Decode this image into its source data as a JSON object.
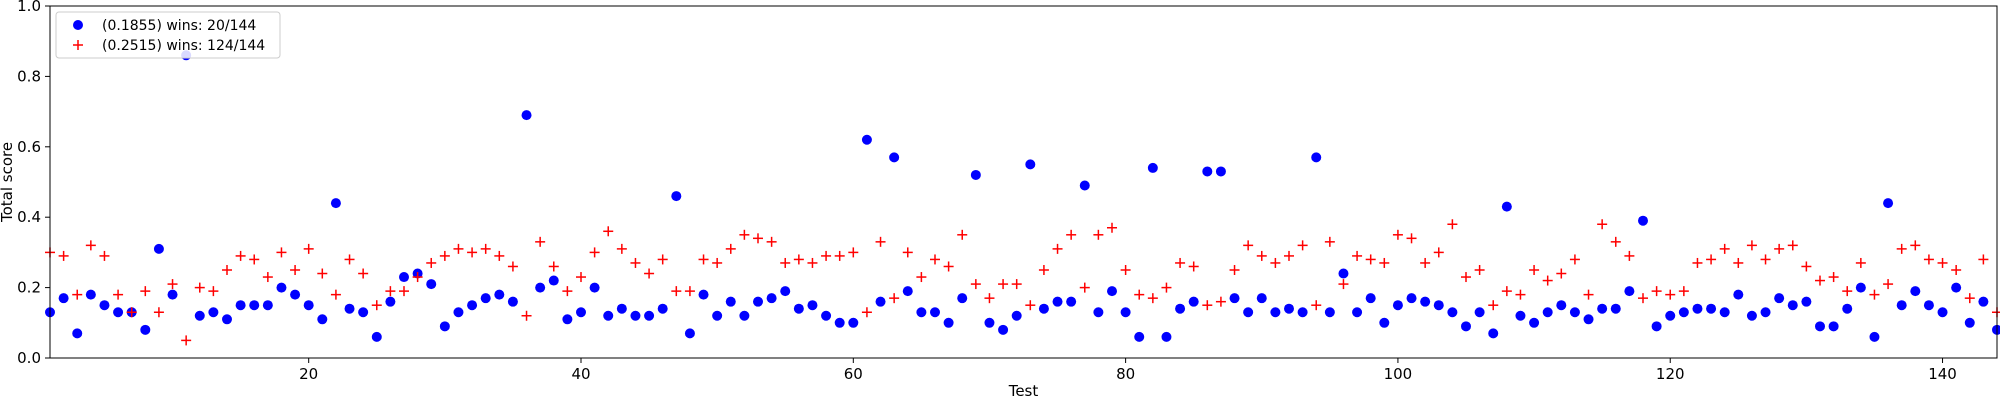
{
  "chart_data": {
    "type": "scatter",
    "title": "",
    "xlabel": "Test",
    "ylabel": "Total score",
    "xlim": [
      1,
      144
    ],
    "ylim": [
      0.0,
      1.0
    ],
    "xticks": [
      20,
      40,
      60,
      80,
      100,
      120,
      140
    ],
    "yticks": [
      0.0,
      0.2,
      0.4,
      0.6,
      0.8,
      1.0
    ],
    "grid": false,
    "legend_position": "top-left",
    "series": [
      {
        "name": "(0.1855) wins: 20/144",
        "marker": "circle",
        "color": "#0000ff",
        "x": [
          1,
          2,
          3,
          4,
          5,
          6,
          7,
          8,
          9,
          10,
          11,
          12,
          13,
          14,
          15,
          16,
          17,
          18,
          19,
          20,
          21,
          22,
          23,
          24,
          25,
          26,
          27,
          28,
          29,
          30,
          31,
          32,
          33,
          34,
          35,
          36,
          37,
          38,
          39,
          40,
          41,
          42,
          43,
          44,
          45,
          46,
          47,
          48,
          49,
          50,
          51,
          52,
          53,
          54,
          55,
          56,
          57,
          58,
          59,
          60,
          61,
          62,
          63,
          64,
          65,
          66,
          67,
          68,
          69,
          70,
          71,
          72,
          73,
          74,
          75,
          76,
          77,
          78,
          79,
          80,
          81,
          82,
          83,
          84,
          85,
          86,
          87,
          88,
          89,
          90,
          91,
          92,
          93,
          94,
          95,
          96,
          97,
          98,
          99,
          100,
          101,
          102,
          103,
          104,
          105,
          106,
          107,
          108,
          109,
          110,
          111,
          112,
          113,
          114,
          115,
          116,
          117,
          118,
          119,
          120,
          121,
          122,
          123,
          124,
          125,
          126,
          127,
          128,
          129,
          130,
          131,
          132,
          133,
          134,
          135,
          136,
          137,
          138,
          139,
          140,
          141,
          142,
          143,
          144
        ],
        "y": [
          0.13,
          0.17,
          0.07,
          0.18,
          0.15,
          0.13,
          0.13,
          0.08,
          0.31,
          0.18,
          0.86,
          0.12,
          0.13,
          0.11,
          0.15,
          0.15,
          0.15,
          0.2,
          0.18,
          0.15,
          0.11,
          0.44,
          0.14,
          0.13,
          0.06,
          0.16,
          0.23,
          0.24,
          0.21,
          0.09,
          0.13,
          0.15,
          0.17,
          0.18,
          0.16,
          0.69,
          0.2,
          0.22,
          0.11,
          0.13,
          0.2,
          0.12,
          0.14,
          0.12,
          0.12,
          0.14,
          0.46,
          0.07,
          0.18,
          0.12,
          0.16,
          0.12,
          0.16,
          0.17,
          0.19,
          0.14,
          0.15,
          0.12,
          0.1,
          0.1,
          0.62,
          0.16,
          0.57,
          0.19,
          0.13,
          0.13,
          0.1,
          0.17,
          0.52,
          0.1,
          0.08,
          0.12,
          0.55,
          0.14,
          0.16,
          0.16,
          0.49,
          0.13,
          0.19,
          0.13,
          0.06,
          0.54,
          0.06,
          0.14,
          0.16,
          0.53,
          0.53,
          0.17,
          0.13,
          0.17,
          0.13,
          0.14,
          0.13,
          0.57,
          0.13,
          0.24,
          0.13,
          0.17,
          0.1,
          0.15,
          0.17,
          0.16,
          0.15,
          0.13,
          0.09,
          0.13,
          0.07,
          0.43,
          0.12,
          0.1,
          0.13,
          0.15,
          0.13,
          0.11,
          0.14,
          0.14,
          0.19,
          0.39,
          0.09,
          0.12,
          0.13,
          0.14,
          0.14,
          0.13,
          0.18,
          0.12,
          0.13,
          0.17,
          0.15,
          0.16,
          0.09,
          0.09,
          0.14,
          0.2,
          0.06,
          0.44,
          0.15,
          0.19,
          0.15,
          0.13,
          0.2,
          0.1,
          0.16,
          0.08
        ]
      },
      {
        "name": "(0.2515) wins: 124/144",
        "marker": "plus",
        "color": "#ff0000",
        "x": [
          1,
          2,
          3,
          4,
          5,
          6,
          7,
          8,
          9,
          10,
          11,
          12,
          13,
          14,
          15,
          16,
          17,
          18,
          19,
          20,
          21,
          22,
          23,
          24,
          25,
          26,
          27,
          28,
          29,
          30,
          31,
          32,
          33,
          34,
          35,
          36,
          37,
          38,
          39,
          40,
          41,
          42,
          43,
          44,
          45,
          46,
          47,
          48,
          49,
          50,
          51,
          52,
          53,
          54,
          55,
          56,
          57,
          58,
          59,
          60,
          61,
          62,
          63,
          64,
          65,
          66,
          67,
          68,
          69,
          70,
          71,
          72,
          73,
          74,
          75,
          76,
          77,
          78,
          79,
          80,
          81,
          82,
          83,
          84,
          85,
          86,
          87,
          88,
          89,
          90,
          91,
          92,
          93,
          94,
          95,
          96,
          97,
          98,
          99,
          100,
          101,
          102,
          103,
          104,
          105,
          106,
          107,
          108,
          109,
          110,
          111,
          112,
          113,
          114,
          115,
          116,
          117,
          118,
          119,
          120,
          121,
          122,
          123,
          124,
          125,
          126,
          127,
          128,
          129,
          130,
          131,
          132,
          133,
          134,
          135,
          136,
          137,
          138,
          139,
          140,
          141,
          142,
          143,
          144
        ],
        "y": [
          0.3,
          0.29,
          0.18,
          0.32,
          0.29,
          0.18,
          0.13,
          0.19,
          0.13,
          0.21,
          0.05,
          0.2,
          0.19,
          0.25,
          0.29,
          0.28,
          0.23,
          0.3,
          0.25,
          0.31,
          0.24,
          0.18,
          0.28,
          0.24,
          0.15,
          0.19,
          0.19,
          0.23,
          0.27,
          0.29,
          0.31,
          0.3,
          0.31,
          0.29,
          0.26,
          0.12,
          0.33,
          0.26,
          0.19,
          0.23,
          0.3,
          0.36,
          0.31,
          0.27,
          0.24,
          0.28,
          0.19,
          0.19,
          0.28,
          0.27,
          0.31,
          0.35,
          0.34,
          0.33,
          0.27,
          0.28,
          0.27,
          0.29,
          0.29,
          0.3,
          0.13,
          0.33,
          0.17,
          0.3,
          0.23,
          0.28,
          0.26,
          0.35,
          0.21,
          0.17,
          0.21,
          0.21,
          0.15,
          0.25,
          0.31,
          0.35,
          0.2,
          0.35,
          0.37,
          0.25,
          0.18,
          0.17,
          0.2,
          0.27,
          0.26,
          0.15,
          0.16,
          0.25,
          0.32,
          0.29,
          0.27,
          0.29,
          0.32,
          0.15,
          0.33,
          0.21,
          0.29,
          0.28,
          0.27,
          0.35,
          0.34,
          0.27,
          0.3,
          0.38,
          0.23,
          0.25,
          0.15,
          0.19,
          0.18,
          0.25,
          0.22,
          0.24,
          0.28,
          0.18,
          0.38,
          0.33,
          0.29,
          0.17,
          0.19,
          0.18,
          0.19,
          0.27,
          0.28,
          0.31,
          0.27,
          0.32,
          0.28,
          0.31,
          0.32,
          0.26,
          0.22,
          0.23,
          0.19,
          0.27,
          0.18,
          0.21,
          0.31,
          0.32,
          0.28,
          0.27,
          0.25,
          0.17,
          0.28,
          0.13
        ]
      }
    ]
  }
}
